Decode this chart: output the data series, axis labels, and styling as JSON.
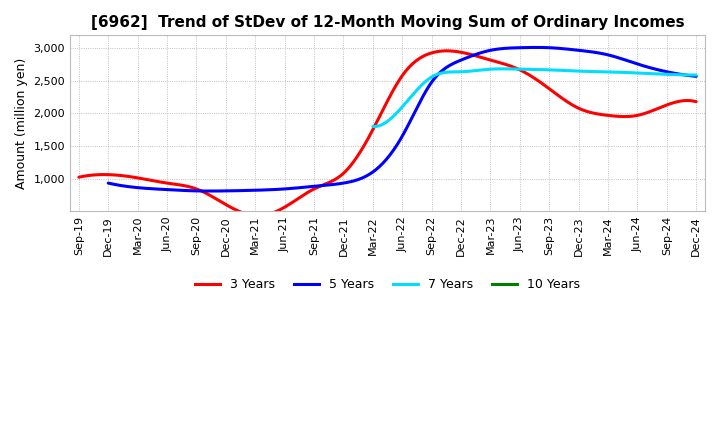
{
  "title": "[6962]  Trend of StDev of 12-Month Moving Sum of Ordinary Incomes",
  "ylabel": "Amount (million yen)",
  "background_color": "#ffffff",
  "plot_background_color": "#ffffff",
  "grid_color": "#999999",
  "title_fontsize": 11,
  "label_fontsize": 9,
  "tick_fontsize": 8,
  "legend_fontsize": 9,
  "x_labels": [
    "Sep-19",
    "Dec-19",
    "Mar-20",
    "Jun-20",
    "Sep-20",
    "Dec-20",
    "Mar-21",
    "Jun-21",
    "Sep-21",
    "Dec-21",
    "Mar-22",
    "Jun-22",
    "Sep-22",
    "Dec-22",
    "Mar-23",
    "Jun-23",
    "Sep-23",
    "Dec-23",
    "Mar-24",
    "Jun-24",
    "Sep-24",
    "Dec-24"
  ],
  "ylim": [
    500,
    3200
  ],
  "yticks": [
    1000,
    1500,
    2000,
    2500,
    3000
  ],
  "series": [
    {
      "label": "3 Years",
      "color": "#ff0000",
      "linewidth": 2.2,
      "data_x": [
        0,
        1,
        2,
        3,
        4,
        5,
        6,
        7,
        8,
        9,
        10,
        11,
        12,
        13,
        14,
        15,
        16,
        17,
        18,
        19,
        20,
        21
      ],
      "data_y": [
        1020,
        1060,
        1010,
        930,
        840,
        600,
        430,
        560,
        840,
        1080,
        1750,
        2580,
        2930,
        2940,
        2820,
        2670,
        2380,
        2080,
        1970,
        1970,
        2130,
        2180
      ]
    },
    {
      "label": "5 Years",
      "color": "#0000ff",
      "linewidth": 2.2,
      "data_x": [
        1,
        2,
        3,
        4,
        5,
        6,
        7,
        8,
        9,
        10,
        11,
        12,
        13,
        14,
        15,
        16,
        17,
        18,
        19,
        20,
        21
      ],
      "data_y": [
        930,
        860,
        830,
        810,
        810,
        820,
        840,
        880,
        930,
        1100,
        1650,
        2480,
        2820,
        2970,
        3010,
        3010,
        2970,
        2900,
        2760,
        2640,
        2570
      ]
    },
    {
      "label": "7 Years",
      "color": "#00ddff",
      "linewidth": 2.2,
      "data_x": [
        10,
        11,
        12,
        13,
        14,
        15,
        16,
        17,
        18,
        19,
        20,
        21
      ],
      "data_y": [
        1800,
        2100,
        2560,
        2640,
        2680,
        2680,
        2670,
        2650,
        2640,
        2620,
        2600,
        2590
      ]
    },
    {
      "label": "10 Years",
      "color": "#008000",
      "linewidth": 2.2,
      "data_x": [],
      "data_y": []
    }
  ]
}
